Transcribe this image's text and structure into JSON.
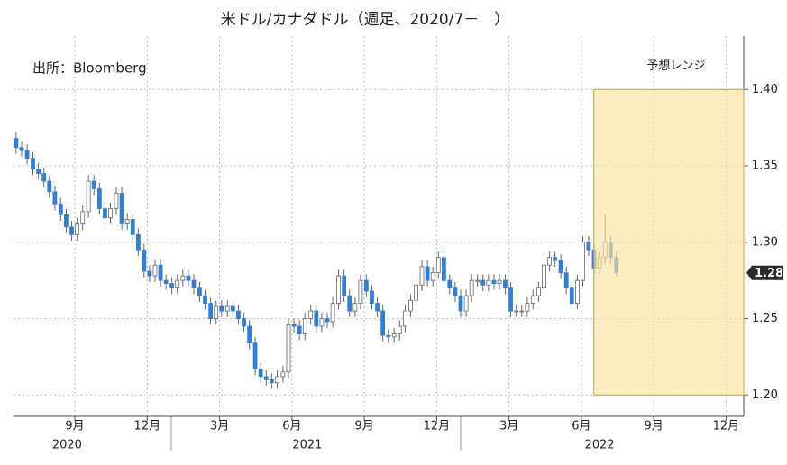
{
  "chart_data": {
    "type": "candlestick",
    "title": "米ドル/カナダドル（週足、2020/7－　）",
    "source": "出所：Bloomberg",
    "forecast_label": "予想レンジ",
    "forecast_range": {
      "x": [
        2022.46,
        2022.978
      ],
      "y": [
        1.2,
        1.4
      ]
    },
    "xlim": [
      2020.455,
      2022.978
    ],
    "ylim": [
      1.186,
      1.435
    ],
    "xticks": [
      {
        "value": 2020.667,
        "label": "9月"
      },
      {
        "value": 2020.917,
        "label": "12月"
      },
      {
        "value": 2021.167,
        "label": "3月"
      },
      {
        "value": 2021.417,
        "label": "6月"
      },
      {
        "value": 2021.667,
        "label": "9月"
      },
      {
        "value": 2021.917,
        "label": "12月"
      },
      {
        "value": 2022.167,
        "label": "3月"
      },
      {
        "value": 2022.417,
        "label": "6月"
      },
      {
        "value": 2022.667,
        "label": "9月"
      },
      {
        "value": 2022.917,
        "label": "12月"
      }
    ],
    "year_labels": [
      {
        "value": 2020.64,
        "label": "2020"
      },
      {
        "value": 2021.47,
        "label": "2021"
      },
      {
        "value": 2022.48,
        "label": "2022"
      }
    ],
    "year_separators": [
      2021,
      2022
    ],
    "yticks": [
      {
        "value": 1.2,
        "label": "1.20"
      },
      1.25,
      {
        "value": 1.3,
        "label": "1.30"
      },
      1.35,
      {
        "value": 1.4,
        "label": "1.40"
      }
    ],
    "last_price": 1.28,
    "grid": true,
    "up_color": "#ffffff",
    "down_color": "#2f7ed8",
    "wick_color": "#666666",
    "x": [
      2020.464,
      2020.483,
      2020.502,
      2020.522,
      2020.541,
      2020.56,
      2020.579,
      2020.598,
      2020.618,
      2020.637,
      2020.656,
      2020.675,
      2020.694,
      2020.714,
      2020.733,
      2020.752,
      2020.771,
      2020.79,
      2020.81,
      2020.829,
      2020.848,
      2020.867,
      2020.886,
      2020.906,
      2020.925,
      2020.944,
      2020.963,
      2020.982,
      2021.002,
      2021.021,
      2021.04,
      2021.059,
      2021.078,
      2021.098,
      2021.117,
      2021.136,
      2021.155,
      2021.174,
      2021.194,
      2021.213,
      2021.232,
      2021.251,
      2021.27,
      2021.29,
      2021.309,
      2021.328,
      2021.347,
      2021.366,
      2021.386,
      2021.405,
      2021.424,
      2021.443,
      2021.462,
      2021.482,
      2021.501,
      2021.52,
      2021.539,
      2021.558,
      2021.578,
      2021.597,
      2021.616,
      2021.635,
      2021.654,
      2021.674,
      2021.693,
      2021.712,
      2021.731,
      2021.75,
      2021.77,
      2021.789,
      2021.808,
      2021.827,
      2021.846,
      2021.866,
      2021.885,
      2021.904,
      2021.923,
      2021.942,
      2021.962,
      2021.981,
      2022.0,
      2022.019,
      2022.038,
      2022.058,
      2022.077,
      2022.096,
      2022.115,
      2022.134,
      2022.154,
      2022.173,
      2022.192,
      2022.211,
      2022.23,
      2022.25,
      2022.269,
      2022.288,
      2022.307,
      2022.326,
      2022.346,
      2022.365,
      2022.384,
      2022.403,
      2022.422,
      2022.442,
      2022.461,
      2022.48,
      2022.499,
      2022.518,
      2022.538
    ],
    "open": [
      1.368,
      1.362,
      1.36,
      1.355,
      1.348,
      1.345,
      1.34,
      1.333,
      1.325,
      1.318,
      1.31,
      1.305,
      1.312,
      1.32,
      1.34,
      1.335,
      1.322,
      1.316,
      1.322,
      1.332,
      1.312,
      1.315,
      1.305,
      1.295,
      1.281,
      1.278,
      1.285,
      1.275,
      1.273,
      1.27,
      1.275,
      1.278,
      1.275,
      1.27,
      1.265,
      1.26,
      1.25,
      1.258,
      1.255,
      1.258,
      1.255,
      1.25,
      1.245,
      1.234,
      1.217,
      1.212,
      1.21,
      1.208,
      1.212,
      1.215,
      1.246,
      1.245,
      1.24,
      1.25,
      1.255,
      1.245,
      1.25,
      1.248,
      1.26,
      1.278,
      1.265,
      1.255,
      1.26,
      1.275,
      1.268,
      1.26,
      1.255,
      1.239,
      1.238,
      1.24,
      1.245,
      1.255,
      1.262,
      1.272,
      1.284,
      1.275,
      1.28,
      1.29,
      1.275,
      1.27,
      1.265,
      1.255,
      1.265,
      1.275,
      1.275,
      1.272,
      1.275,
      1.273,
      1.275,
      1.27,
      1.255,
      1.255,
      1.255,
      1.26,
      1.265,
      1.27,
      1.285,
      1.29,
      1.288,
      1.28,
      1.27,
      1.26,
      1.275,
      1.3,
      1.295,
      1.283,
      1.29,
      1.3,
      1.29
    ],
    "high": [
      1.372,
      1.366,
      1.364,
      1.359,
      1.352,
      1.349,
      1.344,
      1.337,
      1.329,
      1.322,
      1.314,
      1.316,
      1.324,
      1.344,
      1.344,
      1.339,
      1.326,
      1.326,
      1.336,
      1.336,
      1.319,
      1.319,
      1.309,
      1.299,
      1.285,
      1.289,
      1.289,
      1.279,
      1.277,
      1.279,
      1.282,
      1.282,
      1.279,
      1.274,
      1.269,
      1.264,
      1.262,
      1.262,
      1.262,
      1.262,
      1.259,
      1.254,
      1.249,
      1.238,
      1.221,
      1.216,
      1.214,
      1.216,
      1.219,
      1.25,
      1.25,
      1.249,
      1.254,
      1.259,
      1.259,
      1.254,
      1.254,
      1.264,
      1.282,
      1.282,
      1.269,
      1.264,
      1.279,
      1.279,
      1.272,
      1.264,
      1.259,
      1.243,
      1.244,
      1.249,
      1.259,
      1.266,
      1.276,
      1.288,
      1.288,
      1.284,
      1.294,
      1.294,
      1.279,
      1.274,
      1.269,
      1.269,
      1.279,
      1.279,
      1.279,
      1.279,
      1.279,
      1.279,
      1.279,
      1.274,
      1.259,
      1.259,
      1.264,
      1.269,
      1.274,
      1.289,
      1.294,
      1.294,
      1.292,
      1.284,
      1.274,
      1.279,
      1.304,
      1.304,
      1.299,
      1.294,
      1.318,
      1.304,
      1.294
    ],
    "low": [
      1.358,
      1.356,
      1.351,
      1.344,
      1.341,
      1.336,
      1.329,
      1.321,
      1.314,
      1.306,
      1.301,
      1.301,
      1.308,
      1.316,
      1.331,
      1.318,
      1.312,
      1.312,
      1.318,
      1.308,
      1.308,
      1.301,
      1.291,
      1.277,
      1.274,
      1.274,
      1.271,
      1.269,
      1.266,
      1.266,
      1.271,
      1.271,
      1.266,
      1.261,
      1.256,
      1.246,
      1.246,
      1.251,
      1.251,
      1.251,
      1.246,
      1.241,
      1.23,
      1.213,
      1.208,
      1.206,
      1.204,
      1.204,
      1.208,
      1.211,
      1.241,
      1.236,
      1.236,
      1.246,
      1.241,
      1.241,
      1.244,
      1.244,
      1.256,
      1.261,
      1.251,
      1.251,
      1.256,
      1.264,
      1.256,
      1.251,
      1.235,
      1.234,
      1.234,
      1.236,
      1.241,
      1.251,
      1.258,
      1.268,
      1.271,
      1.271,
      1.276,
      1.271,
      1.266,
      1.261,
      1.251,
      1.251,
      1.261,
      1.271,
      1.268,
      1.268,
      1.269,
      1.269,
      1.266,
      1.251,
      1.251,
      1.251,
      1.251,
      1.256,
      1.261,
      1.266,
      1.281,
      1.284,
      1.276,
      1.266,
      1.256,
      1.256,
      1.271,
      1.291,
      1.279,
      1.279,
      1.286,
      1.286,
      1.278
    ],
    "close": [
      1.362,
      1.36,
      1.355,
      1.348,
      1.345,
      1.34,
      1.333,
      1.325,
      1.318,
      1.31,
      1.305,
      1.312,
      1.32,
      1.34,
      1.335,
      1.322,
      1.316,
      1.322,
      1.332,
      1.312,
      1.315,
      1.305,
      1.295,
      1.281,
      1.278,
      1.285,
      1.275,
      1.273,
      1.27,
      1.275,
      1.278,
      1.275,
      1.27,
      1.265,
      1.26,
      1.25,
      1.258,
      1.255,
      1.258,
      1.255,
      1.25,
      1.245,
      1.234,
      1.217,
      1.212,
      1.21,
      1.208,
      1.212,
      1.215,
      1.246,
      1.245,
      1.24,
      1.25,
      1.255,
      1.245,
      1.25,
      1.248,
      1.26,
      1.278,
      1.265,
      1.255,
      1.26,
      1.275,
      1.268,
      1.26,
      1.255,
      1.239,
      1.238,
      1.24,
      1.245,
      1.255,
      1.262,
      1.272,
      1.284,
      1.275,
      1.28,
      1.29,
      1.275,
      1.27,
      1.265,
      1.255,
      1.265,
      1.275,
      1.275,
      1.272,
      1.275,
      1.273,
      1.275,
      1.27,
      1.255,
      1.255,
      1.255,
      1.26,
      1.265,
      1.27,
      1.285,
      1.29,
      1.288,
      1.28,
      1.27,
      1.26,
      1.275,
      1.3,
      1.295,
      1.283,
      1.29,
      1.3,
      1.29,
      1.28
    ]
  }
}
